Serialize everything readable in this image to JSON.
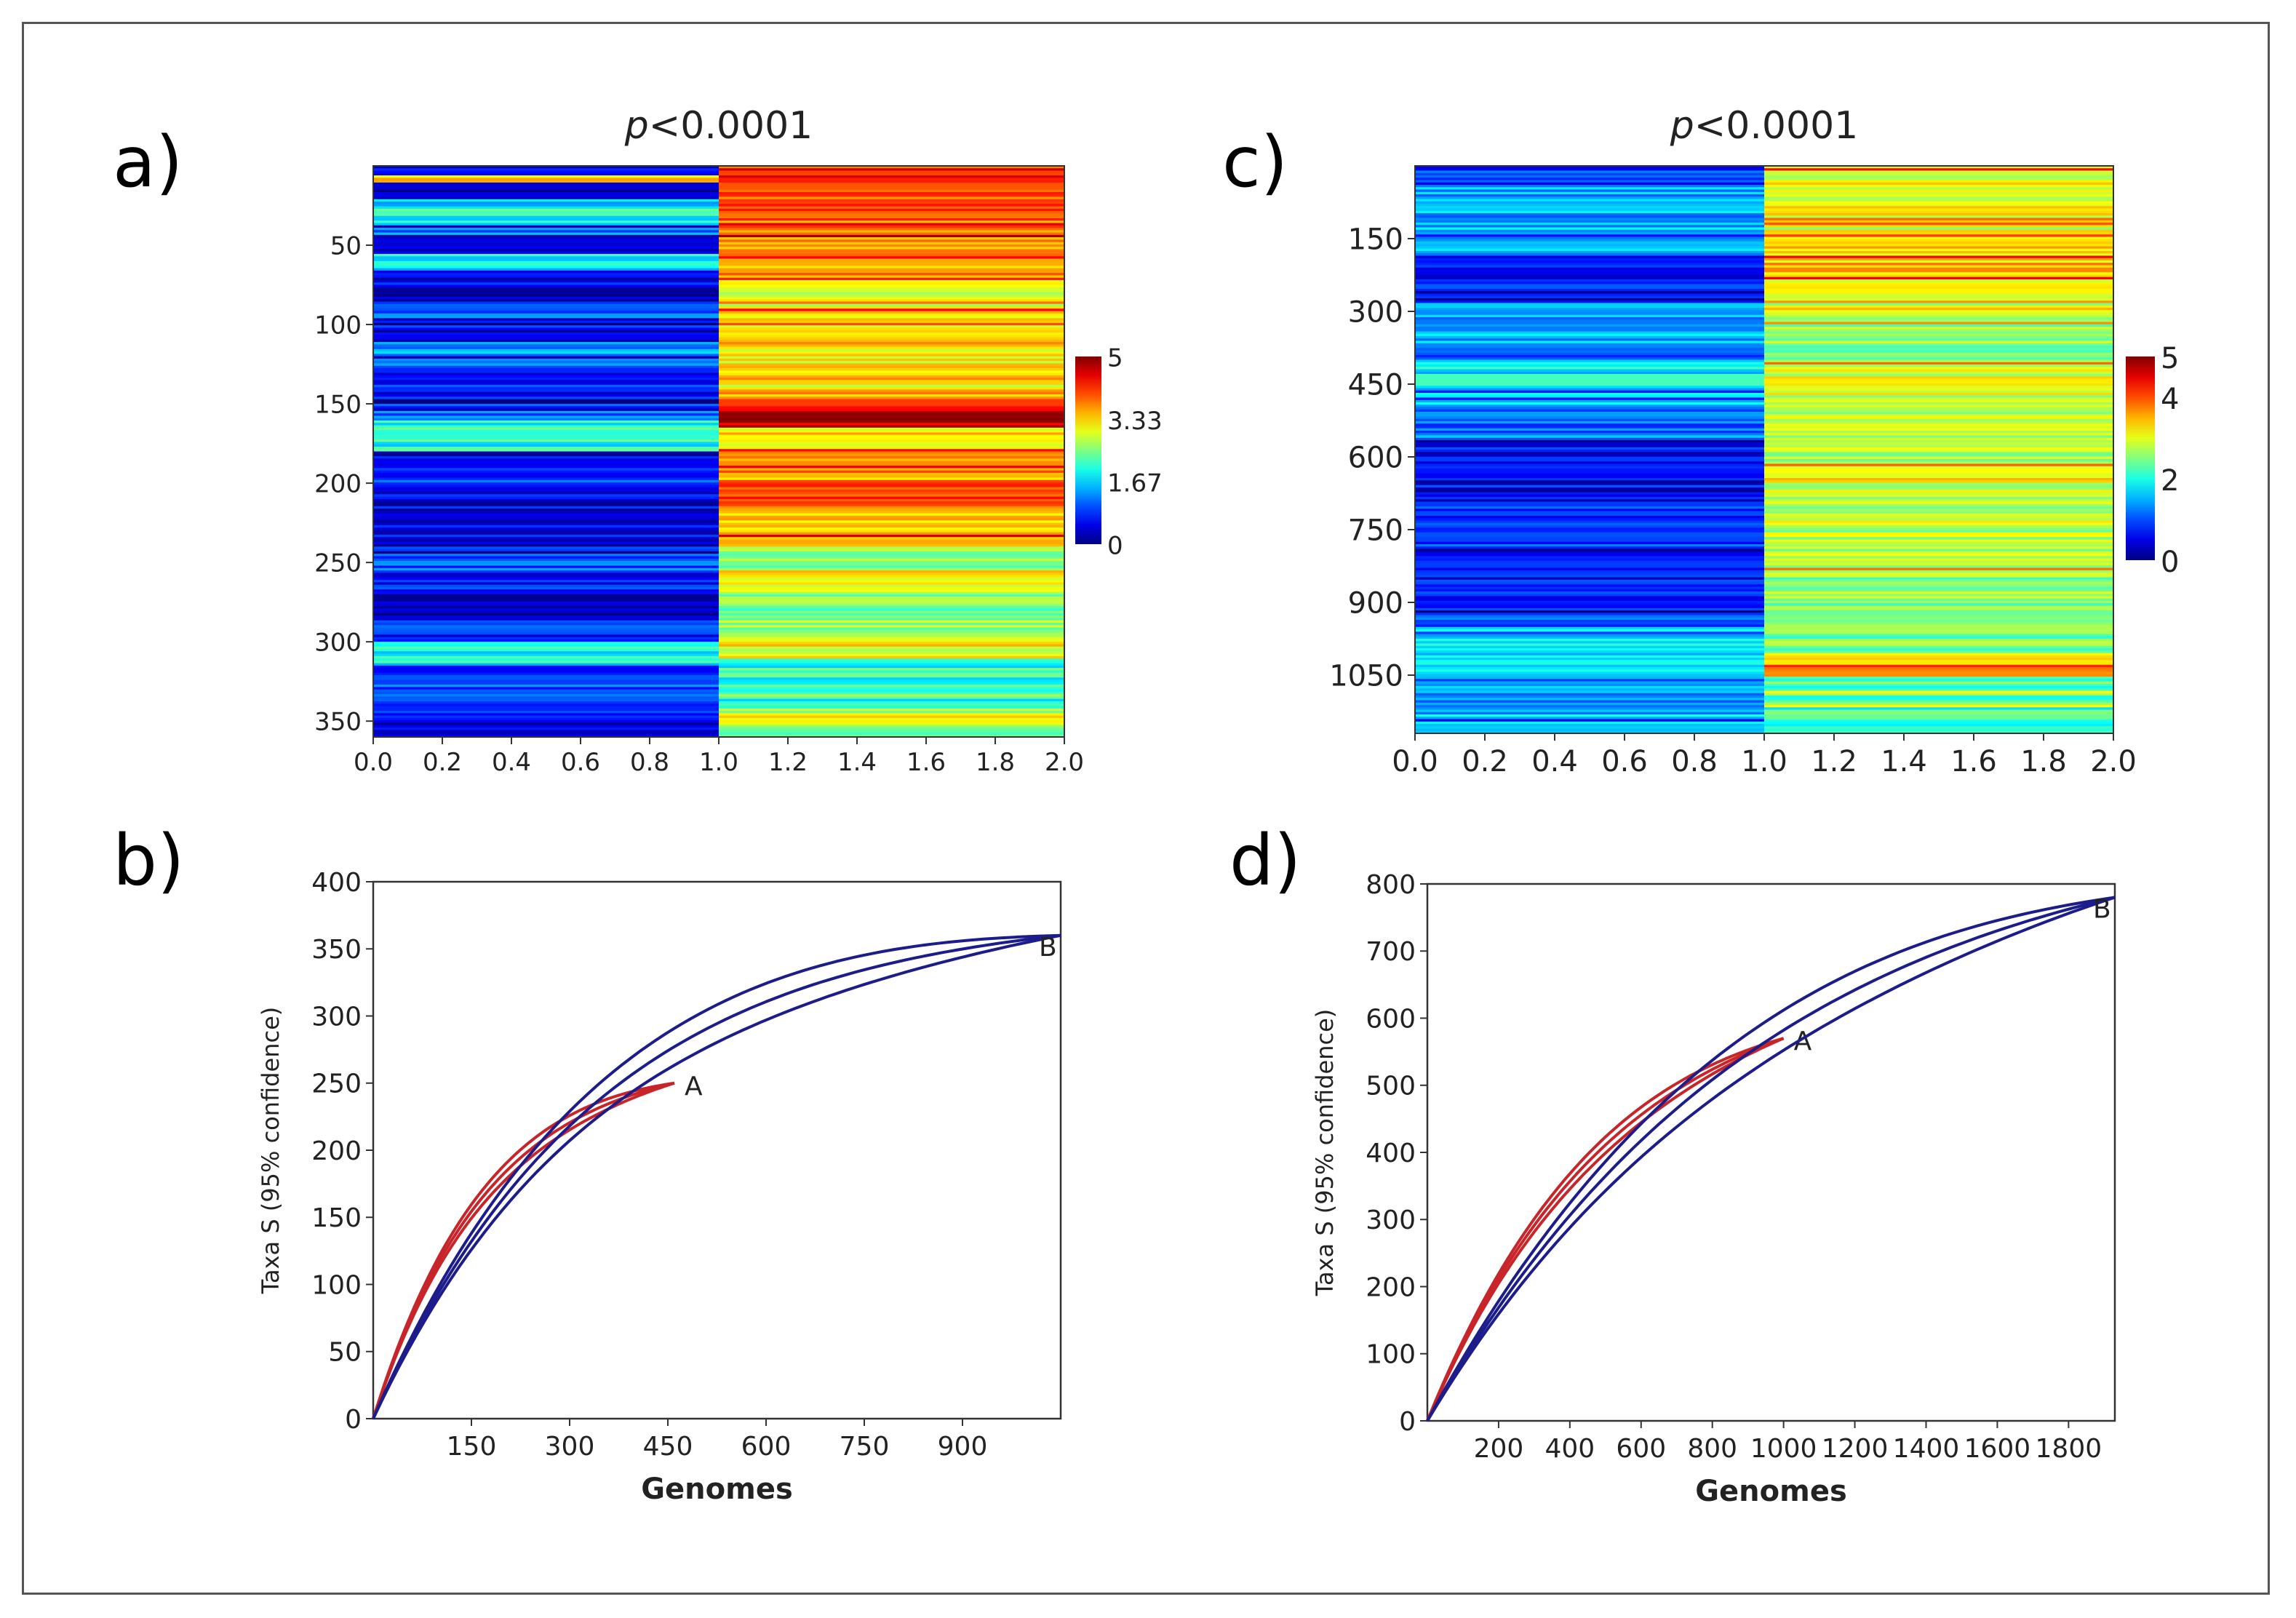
{
  "panel_labels": {
    "a": "a)",
    "b": "b)",
    "c": "c)",
    "d": "d)"
  },
  "chart_data": [
    {
      "id": "a",
      "type": "heatmap",
      "title": "p<0.0001",
      "title_italic": "p",
      "title_rest": "<0.0001",
      "rows": 360,
      "x_ticks": [
        "0.0",
        "0.2",
        "0.4",
        "0.6",
        "0.8",
        "1.0",
        "1.2",
        "1.4",
        "1.6",
        "1.8",
        "2.0"
      ],
      "x_range": [
        0,
        2
      ],
      "y_ticks": [
        "50",
        "100",
        "150",
        "200",
        "250",
        "300",
        "350"
      ],
      "y_tick_values": [
        50,
        100,
        150,
        200,
        250,
        300,
        350
      ],
      "colorbar_ticks": [
        "0",
        "1.67",
        "3.33",
        "5"
      ],
      "colorbar_values": [
        0,
        1.67,
        3.33,
        5
      ],
      "color_range": [
        0,
        5
      ],
      "col1_segments": [
        [
          0,
          5,
          0.6
        ],
        [
          5,
          10,
          3.3
        ],
        [
          10,
          20,
          0.4
        ],
        [
          20,
          25,
          1.5
        ],
        [
          25,
          35,
          2.0
        ],
        [
          35,
          45,
          1.2
        ],
        [
          45,
          55,
          0.5
        ],
        [
          55,
          65,
          1.8
        ],
        [
          65,
          75,
          0.5
        ],
        [
          75,
          85,
          0.2
        ],
        [
          85,
          95,
          1.0
        ],
        [
          95,
          110,
          0.6
        ],
        [
          110,
          125,
          1.3
        ],
        [
          125,
          150,
          0.7
        ],
        [
          150,
          160,
          1.1
        ],
        [
          160,
          180,
          2.0
        ],
        [
          180,
          190,
          0.4
        ],
        [
          190,
          210,
          0.9
        ],
        [
          210,
          240,
          0.5
        ],
        [
          240,
          255,
          1.0
        ],
        [
          255,
          270,
          0.7
        ],
        [
          270,
          285,
          0.3
        ],
        [
          285,
          300,
          0.8
        ],
        [
          300,
          315,
          1.9
        ],
        [
          315,
          330,
          1.0
        ],
        [
          330,
          350,
          0.8
        ],
        [
          350,
          360,
          0.5
        ]
      ],
      "col2_segments": [
        [
          0,
          10,
          4.2
        ],
        [
          10,
          30,
          3.9
        ],
        [
          30,
          50,
          3.8
        ],
        [
          50,
          70,
          3.6
        ],
        [
          70,
          80,
          3.0
        ],
        [
          80,
          90,
          2.9
        ],
        [
          90,
          100,
          3.2
        ],
        [
          100,
          140,
          3.1
        ],
        [
          140,
          150,
          3.7
        ],
        [
          150,
          165,
          4.5
        ],
        [
          165,
          180,
          3.3
        ],
        [
          180,
          200,
          3.6
        ],
        [
          200,
          215,
          4.1
        ],
        [
          215,
          240,
          3.4
        ],
        [
          240,
          255,
          2.5
        ],
        [
          255,
          270,
          3.0
        ],
        [
          270,
          285,
          2.4
        ],
        [
          285,
          300,
          2.7
        ],
        [
          300,
          310,
          3.1
        ],
        [
          310,
          345,
          2.0
        ],
        [
          345,
          355,
          2.8
        ],
        [
          355,
          360,
          2.3
        ]
      ]
    },
    {
      "id": "b",
      "type": "line",
      "xlabel": "Genomes",
      "ylabel": "Taxa S (95% confidence)",
      "x_range": [
        0,
        1050
      ],
      "y_range": [
        0,
        400
      ],
      "x_ticks": [
        "150",
        "300",
        "450",
        "600",
        "750",
        "900"
      ],
      "x_tick_values": [
        150,
        300,
        450,
        600,
        750,
        900
      ],
      "y_ticks": [
        "0",
        "50",
        "100",
        "150",
        "200",
        "250",
        "300",
        "350",
        "400"
      ],
      "y_tick_values": [
        0,
        50,
        100,
        150,
        200,
        250,
        300,
        350,
        400
      ],
      "series": [
        {
          "name": "A",
          "label": "A",
          "color": "#c8252a",
          "n_max": 460,
          "s_max": 250,
          "band": 6,
          "k": 2.6
        },
        {
          "name": "B",
          "label": "B",
          "color": "#1c1c8a",
          "n_max": 1050,
          "s_max": 360,
          "band": 14,
          "k": 3.0
        }
      ]
    },
    {
      "id": "c",
      "type": "heatmap",
      "title": "p<0.0001",
      "title_italic": "p",
      "title_rest": "<0.0001",
      "rows": 1170,
      "x_ticks": [
        "0.0",
        "0.2",
        "0.4",
        "0.6",
        "0.8",
        "1.0",
        "1.2",
        "1.4",
        "1.6",
        "1.8",
        "2.0"
      ],
      "x_range": [
        0,
        2
      ],
      "y_ticks": [
        "150",
        "300",
        "450",
        "600",
        "750",
        "900",
        "1050"
      ],
      "y_tick_values": [
        150,
        300,
        450,
        600,
        750,
        900,
        1050
      ],
      "colorbar_ticks": [
        "0",
        "2",
        "4",
        "5"
      ],
      "colorbar_values": [
        0,
        2,
        4,
        5
      ],
      "color_range": [
        0,
        5
      ],
      "col1_segments": [
        [
          0,
          40,
          0.9
        ],
        [
          40,
          100,
          1.4
        ],
        [
          100,
          180,
          1.6
        ],
        [
          180,
          250,
          0.8
        ],
        [
          250,
          280,
          0.5
        ],
        [
          280,
          400,
          1.5
        ],
        [
          400,
          500,
          1.8
        ],
        [
          500,
          560,
          1.2
        ],
        [
          560,
          700,
          0.6
        ],
        [
          700,
          800,
          0.8
        ],
        [
          800,
          900,
          0.7
        ],
        [
          900,
          950,
          0.9
        ],
        [
          950,
          1050,
          1.8
        ],
        [
          1050,
          1120,
          1.3
        ],
        [
          1120,
          1170,
          1.6
        ]
      ],
      "col2_segments": [
        [
          0,
          60,
          3.1
        ],
        [
          60,
          150,
          3.0
        ],
        [
          150,
          230,
          3.4
        ],
        [
          230,
          300,
          2.9
        ],
        [
          300,
          400,
          2.6
        ],
        [
          400,
          500,
          2.9
        ],
        [
          500,
          650,
          2.7
        ],
        [
          650,
          800,
          2.8
        ],
        [
          800,
          900,
          2.6
        ],
        [
          900,
          1000,
          2.5
        ],
        [
          1000,
          1050,
          3.4
        ],
        [
          1050,
          1110,
          2.3
        ],
        [
          1110,
          1170,
          2.1
        ]
      ]
    },
    {
      "id": "d",
      "type": "line",
      "xlabel": "Genomes",
      "ylabel": "Taxa S (95% confidence)",
      "x_range": [
        0,
        1930
      ],
      "y_range": [
        0,
        800
      ],
      "x_ticks": [
        "200",
        "400",
        "600",
        "800",
        "1000",
        "1200",
        "1400",
        "1600",
        "1800"
      ],
      "x_tick_values": [
        200,
        400,
        600,
        800,
        1000,
        1200,
        1400,
        1600,
        1800
      ],
      "y_ticks": [
        "0",
        "100",
        "200",
        "300",
        "400",
        "500",
        "600",
        "700",
        "800"
      ],
      "y_tick_values": [
        0,
        100,
        200,
        300,
        400,
        500,
        600,
        700,
        800
      ],
      "series": [
        {
          "name": "A",
          "label": "A",
          "color": "#c8252a",
          "n_max": 1000,
          "s_max": 570,
          "band": 12,
          "k": 1.9
        },
        {
          "name": "B",
          "label": "B",
          "color": "#1c1c8a",
          "n_max": 1930,
          "s_max": 780,
          "band": 30,
          "k": 2.0
        }
      ]
    }
  ]
}
